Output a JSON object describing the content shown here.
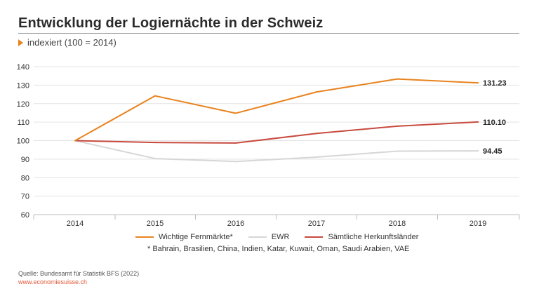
{
  "header": {
    "title": "Entwicklung der Logiernächte in der Schweiz",
    "subtitle": "indexiert (100 = 2014)"
  },
  "chart_data": {
    "type": "line",
    "x": [
      "2014",
      "2015",
      "2016",
      "2017",
      "2018",
      "2019"
    ],
    "ylim": [
      60,
      140
    ],
    "yticks": [
      60,
      70,
      80,
      90,
      100,
      110,
      120,
      130,
      140
    ],
    "grid": true,
    "xlabel": "",
    "ylabel": "",
    "series": [
      {
        "name": "Wichtige Fernmärkte*",
        "color": "#e8831e",
        "values": [
          100,
          124.2,
          114.8,
          126.3,
          133.3,
          131.23
        ],
        "end_label": "131.23"
      },
      {
        "name": "EWR",
        "color": "#d6d6d6",
        "values": [
          100,
          90.3,
          88.7,
          91.1,
          94.3,
          94.45
        ],
        "end_label": "94.45"
      },
      {
        "name": "Sämtliche Herkunftsländer",
        "color": "#c84a3e",
        "values": [
          100,
          99.0,
          98.7,
          103.9,
          107.8,
          110.1
        ],
        "end_label": "110.10"
      }
    ],
    "legend_position": "bottom"
  },
  "footnote": "* Bahrain, Brasilien, China, Indien, Katar, Kuwait, Oman, Saudi Arabien, VAE",
  "source": "Quelle: Bundesamt für Statistik BFS (2022)",
  "website": "www.economiesuisse.ch"
}
